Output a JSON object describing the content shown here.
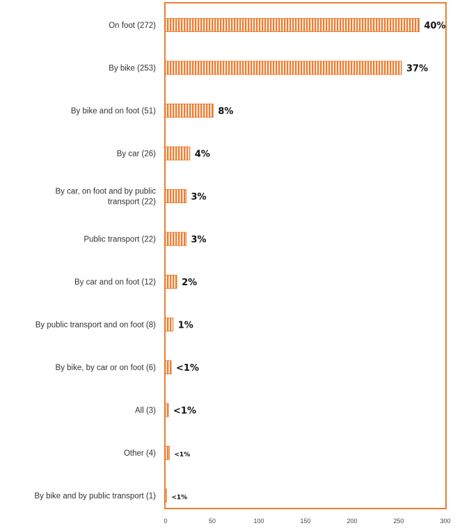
{
  "chart_data": {
    "type": "bar",
    "orientation": "horizontal",
    "categories": [
      "On foot (272)",
      "By bike (253)",
      "By bike and on foot (51)",
      "By car (26)",
      "By car, on foot and by public transport (22)",
      "Public transport (22)",
      "By car and on foot (12)",
      "By public transport and on foot (8)",
      "By bike, by car or on foot (6)",
      "All (3)",
      "Other (4)",
      "By bike and by public transport (1)"
    ],
    "category_lines": [
      [
        "On foot (272)"
      ],
      [
        "By bike (253)"
      ],
      [
        "By bike and on foot (51)"
      ],
      [
        "By car (26)"
      ],
      [
        "By car, on foot and by public",
        "transport (22)"
      ],
      [
        "Public transport (22)"
      ],
      [
        "By car and on foot (12)"
      ],
      [
        "By public transport and on foot (8)"
      ],
      [
        "By bike, by car or on foot (6)"
      ],
      [
        "All (3)"
      ],
      [
        "Other (4)"
      ],
      [
        "By bike and by public transport (1)"
      ]
    ],
    "values": [
      272,
      253,
      51,
      26,
      22,
      22,
      12,
      8,
      6,
      3,
      4,
      1
    ],
    "data_labels": [
      "40%",
      "37%",
      "8%",
      "4%",
      "3%",
      "3%",
      "2%",
      "1%",
      "<1%",
      "<1%",
      "<1%",
      "<1%"
    ],
    "x_ticks": [
      0,
      50,
      100,
      150,
      200,
      250,
      300
    ],
    "xlim": [
      0,
      300
    ],
    "title": "",
    "xlabel": "",
    "ylabel": "",
    "grid": false,
    "legend": "none",
    "colors": {
      "bar": "#ed7d31",
      "bar_stripe": "#ffffff",
      "frame": "#ed7d31"
    }
  }
}
